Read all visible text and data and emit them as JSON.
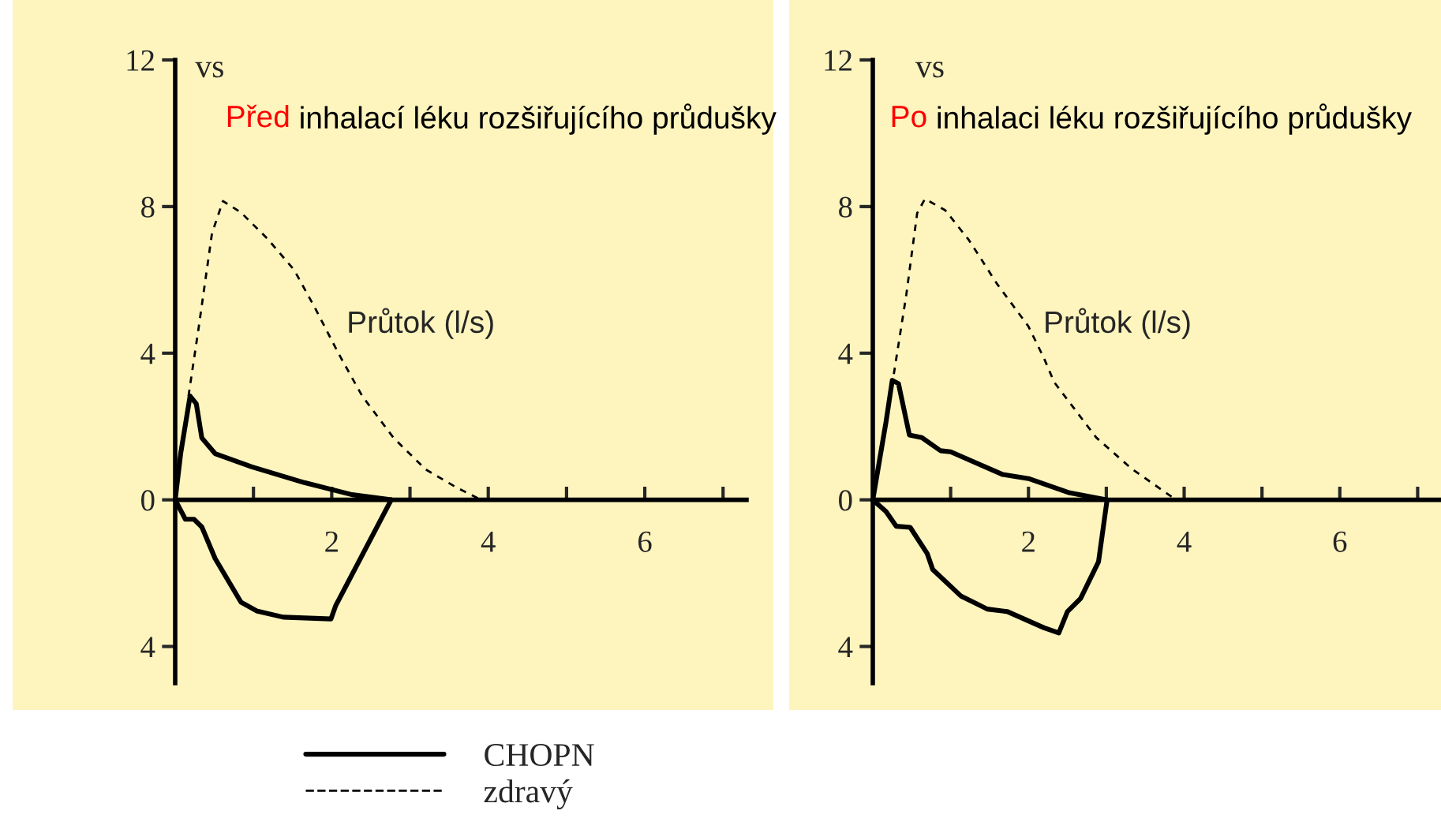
{
  "chart_data": [
    {
      "type": "line",
      "title": "Před inhalací léku rozšiřujícího průdušky",
      "ylabel": "Průtok (l/s)",
      "annotations": [
        "vs"
      ],
      "xlim": [
        0,
        7.3
      ],
      "ylim": [
        -5,
        12
      ],
      "xticks": [
        {
          "value": 1,
          "label": null
        },
        {
          "value": 2,
          "label": "2"
        },
        {
          "value": 3,
          "label": null
        },
        {
          "value": 4,
          "label": "4"
        },
        {
          "value": 5,
          "label": null
        },
        {
          "value": 6,
          "label": "6"
        },
        {
          "value": 7,
          "label": null
        }
      ],
      "yticks": [
        {
          "value": -4,
          "label": "4"
        },
        0,
        4,
        8,
        12
      ],
      "grid": false,
      "legend": "bottom",
      "series": [
        {
          "name": "CHOPN",
          "color": "#000000",
          "line_style": "solid",
          "x": [
            0,
            0.07,
            0.19,
            0.27,
            0.34,
            0.51,
            0.98,
            1.65,
            2.26,
            2.76
          ],
          "values": [
            0,
            1.26,
            2.83,
            2.62,
            1.69,
            1.26,
            0.9,
            0.47,
            0.14,
            0
          ]
        },
        {
          "color": "#000000",
          "line_style": "solid",
          "x": [
            0,
            0.13,
            0.24,
            0.34,
            0.51,
            0.84,
            1.04,
            1.38,
            1.99,
            2.05,
            2.76
          ],
          "values": [
            0,
            -0.53,
            -0.53,
            -0.74,
            -1.6,
            -2.79,
            -3.03,
            -3.2,
            -3.25,
            -2.89,
            0
          ]
        },
        {
          "name": "zdravý",
          "color": "#000000",
          "line_style": "dashed",
          "x": [
            0.17,
            0.3,
            0.47,
            0.61,
            0.84,
            1.18,
            1.52,
            1.78,
            2.09,
            2.39,
            2.79,
            3.2,
            3.6,
            3.91
          ],
          "values": [
            2.83,
            4.7,
            7.27,
            8.15,
            7.84,
            7.12,
            6.27,
            5.26,
            3.98,
            2.83,
            1.69,
            0.83,
            0.33,
            0
          ]
        }
      ]
    },
    {
      "type": "line",
      "title": "Po inhalaci léku rozšiřujícího průdušky",
      "ylabel": "Průtok (l/s)",
      "annotations": [
        "vs"
      ],
      "xlim": [
        0,
        7.3
      ],
      "ylim": [
        -5,
        12
      ],
      "xticks": [
        {
          "value": 1,
          "label": null
        },
        {
          "value": 2,
          "label": "2"
        },
        {
          "value": 3,
          "label": null
        },
        {
          "value": 4,
          "label": "4"
        },
        {
          "value": 5,
          "label": null
        },
        {
          "value": 6,
          "label": "6"
        },
        {
          "value": 7,
          "label": null
        }
      ],
      "yticks": [
        {
          "value": -4,
          "label": "4"
        },
        0,
        4,
        8,
        12
      ],
      "grid": false,
      "series": [
        {
          "color": "#000000",
          "line_style": "solid",
          "x": [
            0,
            0.17,
            0.25,
            0.33,
            0.47,
            0.63,
            0.87,
            1.0,
            1.67,
            2.0,
            2.53,
            3.01
          ],
          "values": [
            0,
            2.13,
            3.26,
            3.17,
            1.77,
            1.7,
            1.34,
            1.31,
            0.69,
            0.58,
            0.19,
            0
          ]
        },
        {
          "color": "#000000",
          "line_style": "solid",
          "x": [
            0,
            0.17,
            0.3,
            0.48,
            0.7,
            0.77,
            1.13,
            1.47,
            1.73,
            2.2,
            2.39,
            2.5,
            2.67,
            2.9,
            3.01
          ],
          "values": [
            0,
            -0.32,
            -0.72,
            -0.75,
            -1.47,
            -1.9,
            -2.62,
            -2.98,
            -3.05,
            -3.49,
            -3.63,
            -3.05,
            -2.69,
            -1.69,
            0
          ]
        },
        {
          "color": "#000000",
          "line_style": "dashed",
          "x": [
            0.27,
            0.43,
            0.57,
            0.67,
            0.93,
            1.23,
            1.6,
            2.0,
            2.2,
            2.33,
            2.87,
            3.33,
            3.87
          ],
          "values": [
            3.43,
            5.59,
            7.82,
            8.21,
            7.9,
            7.1,
            5.88,
            4.73,
            3.86,
            3.21,
            1.7,
            0.84,
            0.04
          ]
        }
      ]
    }
  ]
}
